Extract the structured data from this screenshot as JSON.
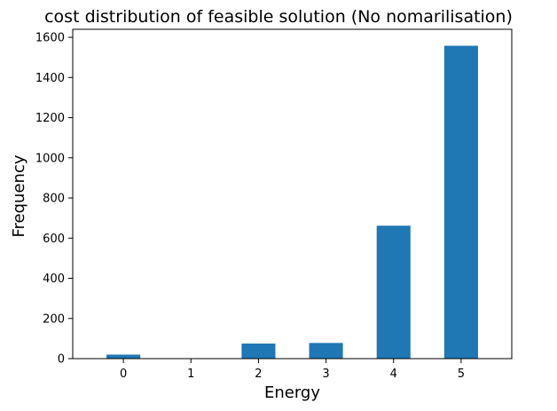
{
  "chart_data": {
    "type": "bar",
    "title": "cost distribution of feasible solution (No nomarilisation)",
    "xlabel": "Energy",
    "ylabel": "Frequency",
    "categories": [
      "0",
      "1",
      "2",
      "3",
      "4",
      "5"
    ],
    "values": [
      20,
      0,
      75,
      78,
      662,
      1558
    ],
    "ylim": [
      0,
      1640
    ],
    "yticks": [
      0,
      200,
      400,
      600,
      800,
      1000,
      1200,
      1400,
      1600
    ],
    "bar_color": "#1f77b4",
    "grid": false,
    "legend": "none"
  }
}
